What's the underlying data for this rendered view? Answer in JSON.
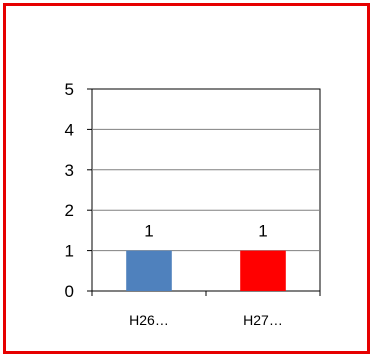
{
  "chart_data": {
    "type": "bar",
    "categories": [
      "H26…",
      "H27…"
    ],
    "values": [
      1,
      1
    ],
    "colors": [
      "#4f81bd",
      "#ff0000"
    ],
    "data_labels": [
      "1",
      "1"
    ],
    "yticks": [
      "0",
      "1",
      "2",
      "3",
      "4",
      "5"
    ],
    "ylim": [
      0,
      5
    ],
    "grid": true,
    "legend": "none",
    "frame_color": "#e60000"
  }
}
